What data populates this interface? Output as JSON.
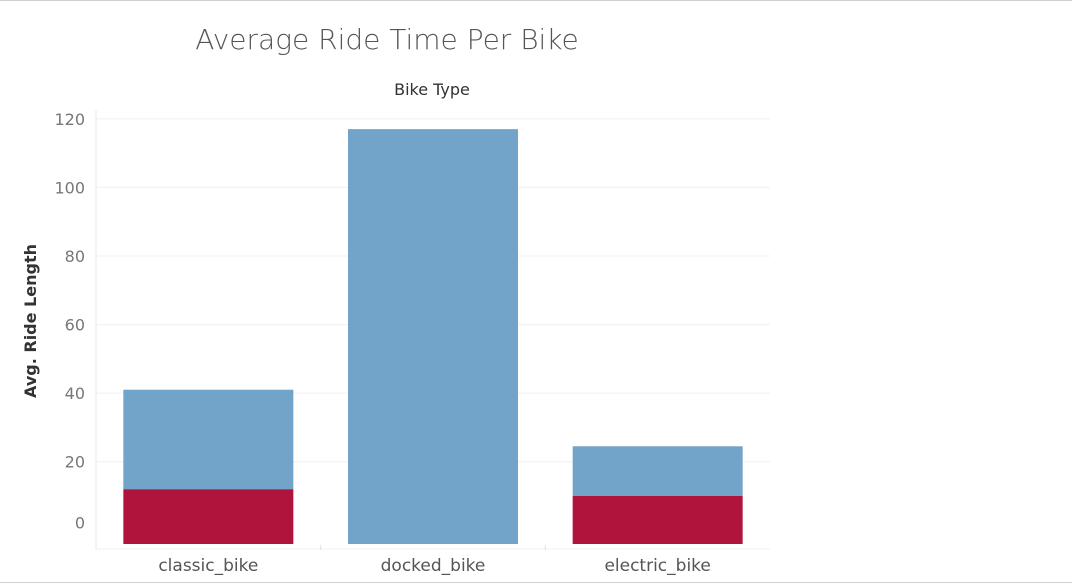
{
  "chart_data": {
    "type": "bar",
    "title": "Average Ride Time Per Bike",
    "column_header": "Bike Type",
    "xlabel": "",
    "ylabel": "Avg. Ride Length",
    "yticks": [
      "120",
      "100",
      "80",
      "60",
      "40",
      "20",
      "0"
    ],
    "ylim": [
      -4,
      122
    ],
    "categories": [
      "classic_bike",
      "docked_bike",
      "electric_bike"
    ],
    "series": [
      {
        "color": "#b0133b",
        "values": [
          12,
          0,
          10
        ]
      },
      {
        "color": "#72a4c9",
        "values": [
          29,
          117,
          14.5
        ]
      }
    ],
    "totals": [
      41,
      117,
      24.5
    ],
    "stacked": true,
    "grid": true
  }
}
